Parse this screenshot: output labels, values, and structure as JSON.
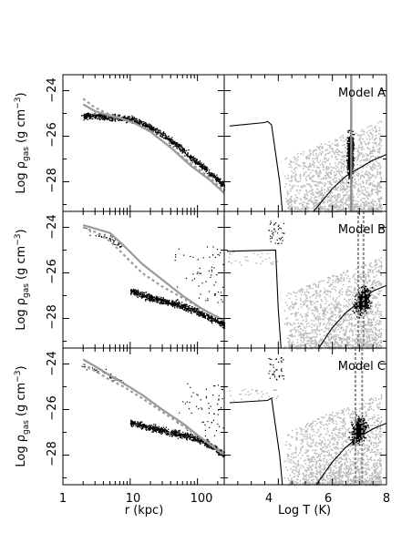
{
  "figure": {
    "x_axis_left": {
      "label": "r (kpc)",
      "scale": "log",
      "ticks": [
        "1",
        "10",
        "100"
      ]
    },
    "x_axis_right": {
      "label": "Log T (K)",
      "ticks": [
        "4",
        "6",
        "8"
      ]
    },
    "y_axis": {
      "label": "Log ρgas (g cm−3)",
      "label_main": "Log ρ",
      "label_sub": "gas",
      "label_units": "(g cm",
      "label_exp": "−3",
      "label_close": ")",
      "ticks": [
        "−24",
        "−26",
        "−28"
      ]
    },
    "rows": [
      {
        "model": "Model A"
      },
      {
        "model": "Model B"
      },
      {
        "model": "Model C"
      }
    ]
  },
  "chart_data": [
    {
      "type": "scatter",
      "panel": "Model A, density profile",
      "xlabel": "r (kpc)",
      "ylabel": "Log ρgas (g cm−3)",
      "xscale": "log",
      "xlim": [
        1,
        250
      ],
      "ylim": [
        -29.3,
        -23.3
      ],
      "series": [
        {
          "style": "grey solid line",
          "x": [
            2,
            3,
            5,
            8,
            12,
            20,
            40,
            80,
            150,
            250
          ],
          "y": [
            -24.6,
            -24.9,
            -25.1,
            -25.25,
            -25.45,
            -25.8,
            -26.5,
            -27.3,
            -27.9,
            -28.5
          ]
        },
        {
          "style": "grey dashed line",
          "x": [
            2,
            3,
            5,
            8,
            12,
            20,
            40,
            80,
            150,
            250
          ],
          "y": [
            -24.35,
            -24.75,
            -25.05,
            -25.25,
            -25.45,
            -25.8,
            -26.5,
            -27.2,
            -27.8,
            -28.4
          ]
        },
        {
          "style": "black points",
          "x": [
            2,
            5,
            10,
            20,
            40,
            80,
            150,
            250
          ],
          "y": [
            -25.1,
            -25.15,
            -25.25,
            -25.6,
            -26.2,
            -26.95,
            -27.6,
            -28.2
          ]
        }
      ]
    },
    {
      "type": "scatter",
      "panel": "Model A, phase diagram",
      "xlabel": "Log T (K)",
      "ylabel": "Log ρgas (g cm−3)",
      "xlim": [
        2,
        8
      ],
      "ylim": [
        -29.3,
        -23.3
      ],
      "series": [
        {
          "style": "black line (cooling curve)",
          "x": [
            2.2,
            3.5,
            3.6,
            3.75,
            4.05,
            4.15
          ],
          "y": [
            -25.55,
            -25.4,
            -25.35,
            -25.5,
            -28.0,
            -29.3
          ]
        },
        {
          "style": "black line (equilibrium)",
          "x": [
            5.3,
            6.0,
            6.5,
            7.0,
            7.5,
            8.0
          ],
          "y": [
            -29.3,
            -28.3,
            -27.75,
            -27.4,
            -27.05,
            -26.8
          ]
        },
        {
          "style": "grey vertical line",
          "x": [
            6.7,
            6.7
          ],
          "y": [
            -29.3,
            -23.3
          ]
        }
      ]
    },
    {
      "type": "scatter",
      "panel": "Model B, density profile",
      "xlabel": "r (kpc)",
      "ylabel": "Log ρgas (g cm−3)",
      "xscale": "log",
      "xlim": [
        1,
        250
      ],
      "ylim": [
        -29.3,
        -23.3
      ],
      "series": [
        {
          "style": "grey solid line",
          "x": [
            2,
            3,
            5,
            8,
            15,
            30,
            60,
            120,
            250
          ],
          "y": [
            -23.9,
            -24.05,
            -24.25,
            -24.8,
            -25.6,
            -26.3,
            -27.0,
            -27.6,
            -28.1
          ]
        },
        {
          "style": "grey dashed line",
          "x": [
            2,
            3,
            5,
            8,
            15,
            30,
            60,
            120,
            250
          ],
          "y": [
            -24.0,
            -24.2,
            -24.6,
            -25.2,
            -26.0,
            -26.6,
            -27.1,
            -27.6,
            -28.1
          ]
        },
        {
          "style": "black points",
          "x": [
            10,
            20,
            40,
            80,
            150,
            250
          ],
          "y": [
            -26.8,
            -27.1,
            -27.3,
            -27.6,
            -27.95,
            -28.3
          ]
        }
      ]
    },
    {
      "type": "scatter",
      "panel": "Model B, phase diagram",
      "xlabel": "Log T (K)",
      "ylabel": "Log ρgas (g cm−3)",
      "xlim": [
        2,
        8
      ],
      "ylim": [
        -29.3,
        -23.3
      ],
      "series": [
        {
          "style": "black line (cooling curve)",
          "x": [
            2.1,
            3.9,
            4.0,
            4.1
          ],
          "y": [
            -25.05,
            -25.0,
            -27.6,
            -29.3
          ]
        },
        {
          "style": "black line (equilibrium)",
          "x": [
            5.5,
            6.0,
            6.5,
            7.0,
            7.5,
            8.0
          ],
          "y": [
            -29.3,
            -28.4,
            -27.75,
            -27.25,
            -26.8,
            -26.55
          ]
        },
        {
          "style": "grey dashed vertical lines",
          "x": [
            6.95,
            7.15
          ],
          "y": [
            -29.3,
            -23.3
          ]
        }
      ]
    },
    {
      "type": "scatter",
      "panel": "Model C, density profile",
      "xlabel": "r (kpc)",
      "ylabel": "Log ρgas (g cm−3)",
      "xscale": "log",
      "xlim": [
        1,
        250
      ],
      "ylim": [
        -29.3,
        -23.3
      ],
      "series": [
        {
          "style": "grey solid line",
          "x": [
            2,
            3,
            5,
            8,
            15,
            30,
            60,
            120,
            250
          ],
          "y": [
            -23.8,
            -24.1,
            -24.5,
            -24.85,
            -25.35,
            -26.0,
            -26.6,
            -27.3,
            -28.0
          ]
        },
        {
          "style": "grey dashed line",
          "x": [
            2,
            3,
            5,
            8,
            15,
            30,
            60,
            120,
            250
          ],
          "y": [
            -24.0,
            -24.3,
            -24.7,
            -25.0,
            -25.5,
            -26.1,
            -26.7,
            -27.3,
            -27.9
          ]
        },
        {
          "style": "black points",
          "x": [
            10,
            20,
            40,
            80,
            150,
            250
          ],
          "y": [
            -26.55,
            -26.8,
            -27.0,
            -27.2,
            -27.55,
            -28.0
          ]
        }
      ]
    },
    {
      "type": "scatter",
      "panel": "Model C, phase diagram",
      "xlabel": "Log T (K)",
      "ylabel": "Log ρgas (g cm−3)",
      "xlim": [
        2,
        8
      ],
      "ylim": [
        -29.3,
        -23.3
      ],
      "series": [
        {
          "style": "black line (cooling curve)",
          "x": [
            2.2,
            3.6,
            3.75,
            4.05,
            4.15
          ],
          "y": [
            -25.7,
            -25.6,
            -25.5,
            -28.0,
            -29.3
          ]
        },
        {
          "style": "black line (equilibrium)",
          "x": [
            5.4,
            6.0,
            6.5,
            7.0,
            7.5,
            8.0
          ],
          "y": [
            -29.3,
            -28.3,
            -27.65,
            -27.2,
            -26.85,
            -26.6
          ]
        },
        {
          "style": "grey dashed vertical lines",
          "x": [
            6.85,
            7.1
          ],
          "y": [
            -29.3,
            -23.3
          ]
        }
      ]
    }
  ]
}
